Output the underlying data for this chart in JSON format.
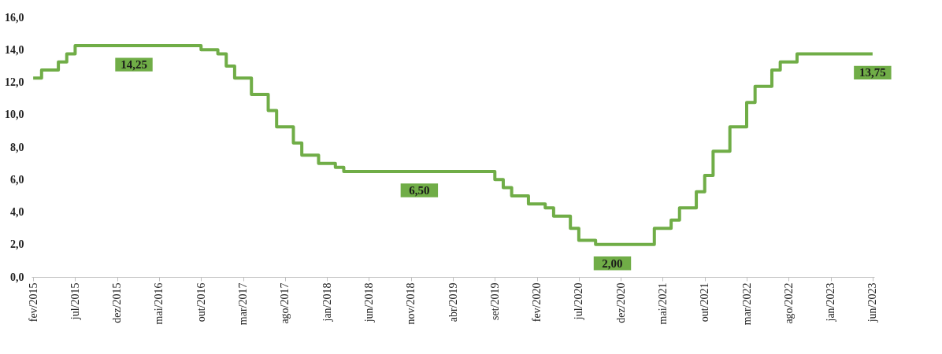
{
  "chart_data": {
    "type": "step",
    "categories": [
      "fev/2015",
      null,
      null,
      null,
      null,
      "jul/2015",
      null,
      null,
      null,
      null,
      "dez/2015",
      null,
      null,
      null,
      null,
      "mai/2016",
      null,
      null,
      null,
      null,
      "out/2016",
      null,
      null,
      null,
      null,
      "mar/2017",
      null,
      null,
      null,
      null,
      "ago/2017",
      null,
      null,
      null,
      null,
      "jan/2018",
      null,
      null,
      null,
      null,
      "jun/2018",
      null,
      null,
      null,
      null,
      "nov/2018",
      null,
      null,
      null,
      null,
      "abr/2019",
      null,
      null,
      null,
      null,
      "set/2019",
      null,
      null,
      null,
      null,
      "fev/2020",
      null,
      null,
      null,
      null,
      "jul/2020",
      null,
      null,
      null,
      null,
      "dez/2020",
      null,
      null,
      null,
      null,
      "mai/2021",
      null,
      null,
      null,
      null,
      "out/2021",
      null,
      null,
      null,
      null,
      "mar/2022",
      null,
      null,
      null,
      null,
      "ago/2022",
      null,
      null,
      null,
      null,
      "jan/2023",
      null,
      null,
      null,
      null,
      "jun/2023"
    ],
    "series": [
      {
        "color": "#70ad47",
        "values": [
          12.25,
          12.75,
          12.75,
          13.25,
          13.75,
          14.25,
          14.25,
          14.25,
          14.25,
          14.25,
          14.25,
          14.25,
          14.25,
          14.25,
          14.25,
          14.25,
          14.25,
          14.25,
          14.25,
          14.25,
          14.0,
          14.0,
          13.75,
          13.0,
          12.25,
          12.25,
          11.25,
          11.25,
          10.25,
          9.25,
          9.25,
          8.25,
          7.5,
          7.5,
          7.0,
          7.0,
          6.75,
          6.5,
          6.5,
          6.5,
          6.5,
          6.5,
          6.5,
          6.5,
          6.5,
          6.5,
          6.5,
          6.5,
          6.5,
          6.5,
          6.5,
          6.5,
          6.5,
          6.5,
          6.5,
          6.0,
          5.5,
          5.0,
          5.0,
          4.5,
          4.5,
          4.25,
          3.75,
          3.75,
          3.0,
          2.25,
          2.25,
          2.0,
          2.0,
          2.0,
          2.0,
          2.0,
          2.0,
          2.0,
          3.0,
          3.0,
          3.5,
          4.25,
          4.25,
          5.25,
          6.25,
          7.75,
          7.75,
          9.25,
          9.25,
          10.75,
          11.75,
          11.75,
          12.75,
          13.25,
          13.25,
          13.75,
          13.75,
          13.75,
          13.75,
          13.75,
          13.75,
          13.75,
          13.75,
          13.75,
          13.75
        ],
        "value_labels": [
          null,
          null,
          null,
          null,
          null,
          null,
          null,
          null,
          null,
          null,
          null,
          null,
          "14,25",
          null,
          null,
          null,
          null,
          null,
          null,
          null,
          null,
          null,
          null,
          null,
          null,
          null,
          null,
          null,
          null,
          null,
          null,
          null,
          null,
          null,
          null,
          null,
          null,
          null,
          null,
          null,
          null,
          null,
          null,
          null,
          null,
          null,
          "6,50",
          null,
          null,
          null,
          null,
          null,
          null,
          null,
          null,
          null,
          null,
          null,
          null,
          null,
          null,
          null,
          null,
          null,
          null,
          null,
          null,
          null,
          null,
          "2,00",
          null,
          null,
          null,
          null,
          null,
          null,
          null,
          null,
          null,
          null,
          null,
          null,
          null,
          null,
          null,
          null,
          null,
          null,
          null,
          null,
          null,
          null,
          null,
          null,
          null,
          null,
          null,
          null,
          null,
          null,
          "13,75"
        ]
      }
    ],
    "ylim": [
      0,
      16
    ],
    "yticks": [
      {
        "value": 0,
        "label": "0,0"
      },
      {
        "value": 2,
        "label": "2,0"
      },
      {
        "value": 4,
        "label": "4,0"
      },
      {
        "value": 6,
        "label": "6,0"
      },
      {
        "value": 8,
        "label": "8,0"
      },
      {
        "value": 10,
        "label": "10,0"
      },
      {
        "value": 12,
        "label": "12,0"
      },
      {
        "value": 14,
        "label": "14,0"
      },
      {
        "value": 16,
        "label": "16,0"
      }
    ],
    "grid": false
  }
}
